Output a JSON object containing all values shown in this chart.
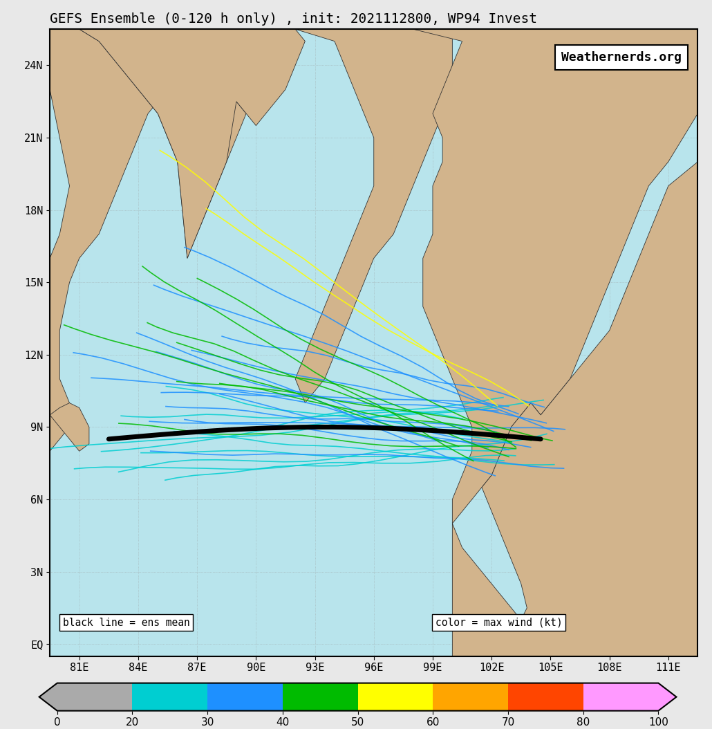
{
  "title": "GEFS Ensemble (0-120 h only) , init: 2021112800, WP94 Invest",
  "title_fontsize": 14,
  "watermark": "Weathernerds.org",
  "xlabel_ticks": [
    "81E",
    "84E",
    "87E",
    "90E",
    "93E",
    "96E",
    "99E",
    "102E",
    "105E",
    "108E",
    "111E"
  ],
  "xlabel_vals": [
    81,
    84,
    87,
    90,
    93,
    96,
    99,
    102,
    105,
    108,
    111
  ],
  "ylabel_ticks": [
    "EQ",
    "3N",
    "6N",
    "9N",
    "12N",
    "15N",
    "18N",
    "21N",
    "24N"
  ],
  "ylabel_vals": [
    0,
    3,
    6,
    9,
    12,
    15,
    18,
    21,
    24
  ],
  "xlim": [
    79.5,
    112.5
  ],
  "ylim": [
    -0.5,
    25.5
  ],
  "ocean_color": "#b8e4ec",
  "land_color": "#d2b48c",
  "colorbar_colors": [
    "#aaaaaa",
    "#00ced1",
    "#1e90ff",
    "#00bb00",
    "#ffff00",
    "#ffa500",
    "#ff4500",
    "#ff1493",
    "#ff99ff"
  ],
  "colorbar_ticks": [
    0,
    20,
    30,
    40,
    50,
    60,
    70,
    80,
    100
  ],
  "legend_left": "black line = ens mean",
  "legend_right": "color = max wind (kt)",
  "background_color": "#e8e8e8",
  "grid_color": "#999999",
  "ensemble_mean_lw": 5.0,
  "ensemble_mean_color": "#000000",
  "border_color": "#333333"
}
